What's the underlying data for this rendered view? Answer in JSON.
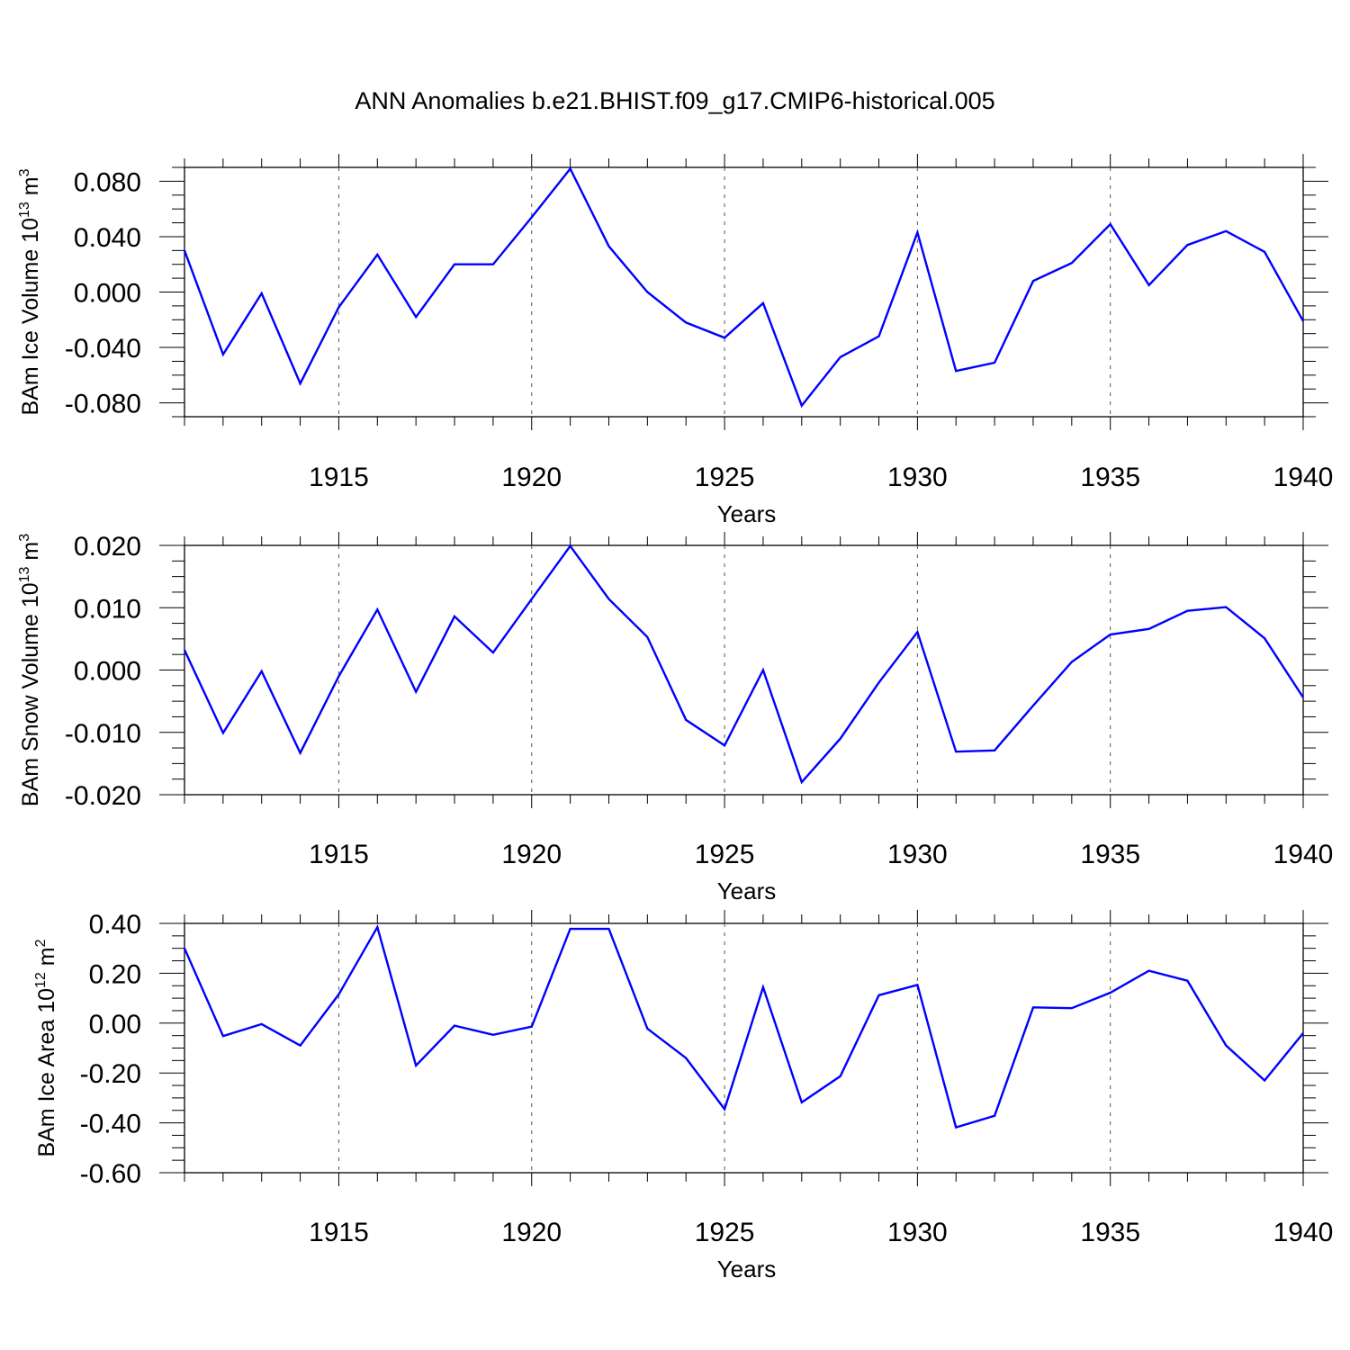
{
  "figure_title": "ANN Anomalies b.e21.BHIST.f09_g17.CMIP6-historical.005",
  "line_color": "#0000ff",
  "chart_data": [
    {
      "type": "line",
      "ylabel": "BAm Ice Volume 10",
      "ylabel_exp": "13",
      "ylabel_unit": " m",
      "ylabel_unit_exp": "3",
      "xlabel": "Years",
      "xlim": [
        1911,
        1940
      ],
      "ylim": [
        -0.09,
        0.09
      ],
      "yticks": [
        -0.08,
        -0.04,
        0.0,
        0.04,
        0.08
      ],
      "ytick_labels": [
        "-0.080",
        "-0.040",
        "0.000",
        "0.040",
        "0.080"
      ],
      "xticks": [
        1915,
        1920,
        1925,
        1930,
        1935,
        1940
      ],
      "xtick_labels": [
        "1915",
        "1920",
        "1925",
        "1930",
        "1935",
        "1940"
      ],
      "grid": "vertical dashed at major x ticks",
      "x": [
        1911,
        1912,
        1913,
        1914,
        1915,
        1916,
        1917,
        1918,
        1919,
        1920,
        1921,
        1922,
        1923,
        1924,
        1925,
        1926,
        1927,
        1928,
        1929,
        1930,
        1931,
        1932,
        1933,
        1934,
        1935,
        1936,
        1937,
        1938,
        1939,
        1940
      ],
      "values": [
        0.03,
        -0.045,
        -0.001,
        -0.066,
        -0.011,
        0.027,
        -0.018,
        0.02,
        0.02,
        0.054,
        0.089,
        0.033,
        0.0,
        -0.022,
        -0.033,
        -0.008,
        -0.082,
        -0.047,
        -0.032,
        0.043,
        -0.057,
        -0.051,
        0.008,
        0.021,
        0.049,
        0.005,
        0.034,
        0.044,
        0.029,
        -0.021
      ]
    },
    {
      "type": "line",
      "ylabel": "BAm Snow Volume 10",
      "ylabel_exp": "13",
      "ylabel_unit": " m",
      "ylabel_unit_exp": "3",
      "xlabel": "Years",
      "xlim": [
        1911,
        1940
      ],
      "ylim": [
        -0.02,
        0.02
      ],
      "yticks": [
        -0.02,
        -0.01,
        0.0,
        0.01,
        0.02
      ],
      "ytick_labels": [
        "-0.020",
        "-0.010",
        "0.000",
        "0.010",
        "0.020"
      ],
      "xticks": [
        1915,
        1920,
        1925,
        1930,
        1935,
        1940
      ],
      "xtick_labels": [
        "1915",
        "1920",
        "1925",
        "1930",
        "1935",
        "1940"
      ],
      "grid": "vertical dashed at major x ticks",
      "x": [
        1911,
        1912,
        1913,
        1914,
        1915,
        1916,
        1917,
        1918,
        1919,
        1920,
        1921,
        1922,
        1923,
        1924,
        1925,
        1926,
        1927,
        1928,
        1929,
        1930,
        1931,
        1932,
        1933,
        1934,
        1935,
        1936,
        1937,
        1938,
        1939,
        1940
      ],
      "values": [
        0.0032,
        -0.0101,
        -0.0002,
        -0.0133,
        -0.001,
        0.0097,
        -0.0035,
        0.0086,
        0.0028,
        0.0114,
        0.0199,
        0.0114,
        0.0053,
        -0.008,
        -0.0121,
        0.0,
        -0.018,
        -0.011,
        -0.002,
        0.0061,
        -0.0131,
        -0.0129,
        -0.0057,
        0.0013,
        0.0057,
        0.0066,
        0.0095,
        0.0101,
        0.0051,
        -0.0044
      ]
    },
    {
      "type": "line",
      "ylabel": "BAm Ice Area 10",
      "ylabel_exp": "12",
      "ylabel_unit": " m",
      "ylabel_unit_exp": "2",
      "xlabel": "Years",
      "xlim": [
        1911,
        1940
      ],
      "ylim": [
        -0.6,
        0.4
      ],
      "yticks": [
        -0.6,
        -0.4,
        -0.2,
        0.0,
        0.2,
        0.4
      ],
      "ytick_labels": [
        "-0.60",
        "-0.40",
        "-0.20",
        "0.00",
        "0.20",
        "0.40"
      ],
      "xticks": [
        1915,
        1920,
        1925,
        1930,
        1935,
        1940
      ],
      "xtick_labels": [
        "1915",
        "1920",
        "1925",
        "1930",
        "1935",
        "1940"
      ],
      "grid": "vertical dashed at major x ticks",
      "x": [
        1911,
        1912,
        1913,
        1914,
        1915,
        1916,
        1917,
        1918,
        1919,
        1920,
        1921,
        1922,
        1923,
        1924,
        1925,
        1926,
        1927,
        1928,
        1929,
        1930,
        1931,
        1932,
        1933,
        1934,
        1935,
        1936,
        1937,
        1938,
        1939,
        1940
      ],
      "values": [
        0.3,
        -0.052,
        -0.004,
        -0.09,
        0.115,
        0.385,
        -0.17,
        -0.01,
        -0.047,
        -0.014,
        0.378,
        0.378,
        -0.022,
        -0.14,
        -0.345,
        0.144,
        -0.318,
        -0.213,
        0.112,
        0.153,
        -0.418,
        -0.372,
        0.063,
        0.06,
        0.122,
        0.21,
        0.17,
        -0.09,
        -0.23,
        -0.04
      ]
    }
  ]
}
